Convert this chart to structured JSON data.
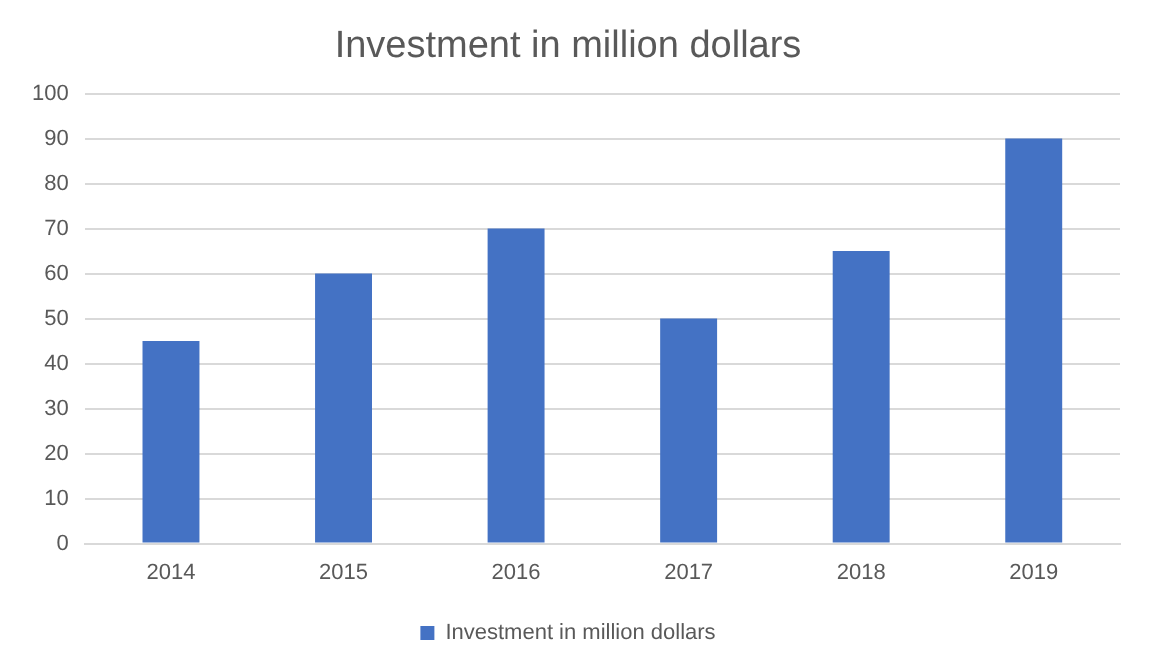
{
  "chart_data": {
    "type": "bar",
    "title": "Investment in million dollars",
    "categories": [
      "2014",
      "2015",
      "2016",
      "2017",
      "2018",
      "2019"
    ],
    "series": [
      {
        "name": "Investment in million dollars",
        "color": "#4472c4",
        "values": [
          45,
          60,
          70,
          50,
          65,
          90
        ]
      }
    ],
    "ylim": [
      0,
      100
    ],
    "yticks": [
      0,
      10,
      20,
      30,
      40,
      50,
      60,
      70,
      80,
      90,
      100
    ],
    "grid": "y",
    "legend": "bottom"
  }
}
